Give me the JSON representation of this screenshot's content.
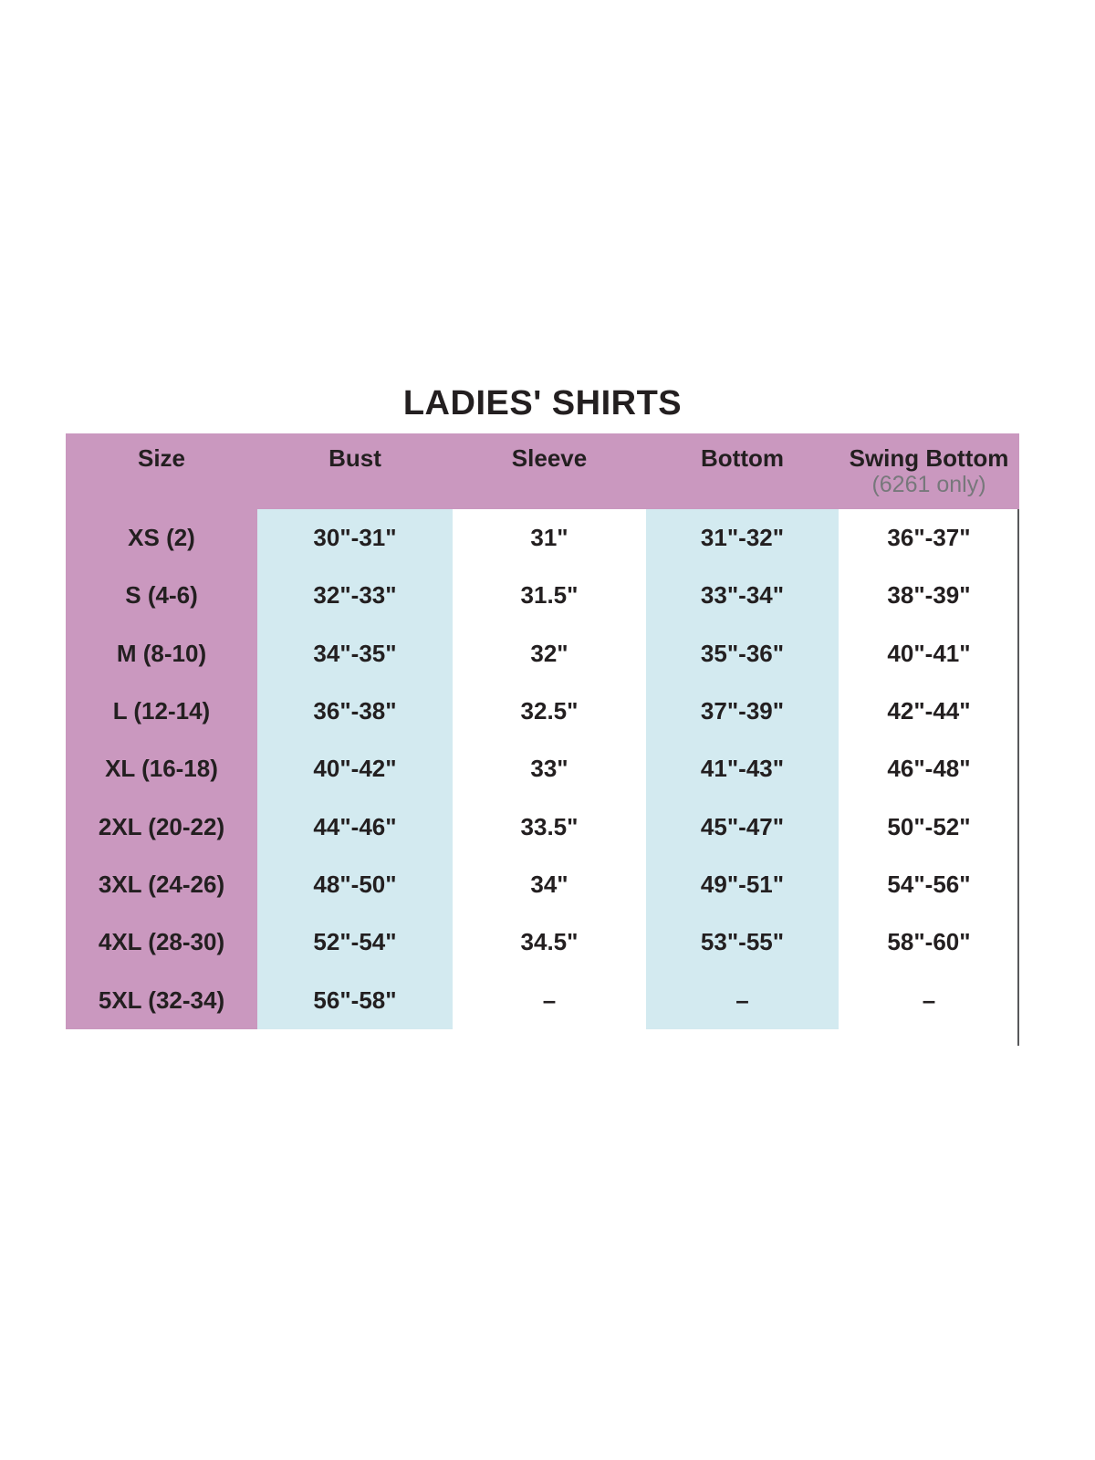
{
  "page": {
    "title": "LADIES' SHIRTS"
  },
  "table": {
    "headers": [
      {
        "label": "Size",
        "sub": ""
      },
      {
        "label": "Bust",
        "sub": ""
      },
      {
        "label": "Sleeve",
        "sub": ""
      },
      {
        "label": "Bottom",
        "sub": ""
      },
      {
        "label": "Swing Bottom",
        "sub": "(6261 only)"
      }
    ],
    "rows": [
      {
        "size": "XS (2)",
        "bust": "30\"-31\"",
        "sleeve": "31\"",
        "bottom": "31\"-32\"",
        "swing_bottom": "36\"-37\""
      },
      {
        "size": "S (4-6)",
        "bust": "32\"-33\"",
        "sleeve": "31.5\"",
        "bottom": "33\"-34\"",
        "swing_bottom": "38\"-39\""
      },
      {
        "size": "M (8-10)",
        "bust": "34\"-35\"",
        "sleeve": "32\"",
        "bottom": "35\"-36\"",
        "swing_bottom": "40\"-41\""
      },
      {
        "size": "L (12-14)",
        "bust": "36\"-38\"",
        "sleeve": "32.5\"",
        "bottom": "37\"-39\"",
        "swing_bottom": "42\"-44\""
      },
      {
        "size": "XL (16-18)",
        "bust": "40\"-42\"",
        "sleeve": "33\"",
        "bottom": "41\"-43\"",
        "swing_bottom": "46\"-48\""
      },
      {
        "size": "2XL (20-22)",
        "bust": "44\"-46\"",
        "sleeve": "33.5\"",
        "bottom": "45\"-47\"",
        "swing_bottom": "50\"-52\""
      },
      {
        "size": "3XL (24-26)",
        "bust": "48\"-50\"",
        "sleeve": "34\"",
        "bottom": "49\"-51\"",
        "swing_bottom": "54\"-56\""
      },
      {
        "size": "4XL (28-30)",
        "bust": "52\"-54\"",
        "sleeve": "34.5\"",
        "bottom": "53\"-55\"",
        "swing_bottom": "58\"-60\""
      },
      {
        "size": "5XL (32-34)",
        "bust": "56\"-58\"",
        "sleeve": "–",
        "bottom": "–",
        "swing_bottom": "–"
      }
    ]
  },
  "colors": {
    "purple": "#ca98bf",
    "blue": "#d3eaf0",
    "text": "#231f20",
    "subtext": "#77787b",
    "rule": "#58595b"
  },
  "chart_data": {
    "type": "table",
    "title": "LADIES' SHIRTS",
    "columns": [
      "Size",
      "Bust",
      "Sleeve",
      "Bottom",
      "Swing Bottom (6261 only)"
    ],
    "rows": [
      [
        "XS (2)",
        "30\"-31\"",
        "31\"",
        "31\"-32\"",
        "36\"-37\""
      ],
      [
        "S (4-6)",
        "32\"-33\"",
        "31.5\"",
        "33\"-34\"",
        "38\"-39\""
      ],
      [
        "M (8-10)",
        "34\"-35\"",
        "32\"",
        "35\"-36\"",
        "40\"-41\""
      ],
      [
        "L (12-14)",
        "36\"-38\"",
        "32.5\"",
        "37\"-39\"",
        "42\"-44\""
      ],
      [
        "XL (16-18)",
        "40\"-42\"",
        "33\"",
        "41\"-43\"",
        "46\"-48\""
      ],
      [
        "2XL (20-22)",
        "44\"-46\"",
        "33.5\"",
        "45\"-47\"",
        "50\"-52\""
      ],
      [
        "3XL (24-26)",
        "48\"-50\"",
        "34\"",
        "49\"-51\"",
        "54\"-56\""
      ],
      [
        "4XL (28-30)",
        "52\"-54\"",
        "34.5\"",
        "53\"-55\"",
        "58\"-60\""
      ],
      [
        "5XL (32-34)",
        "56\"-58\"",
        "–",
        "–",
        "–"
      ]
    ],
    "layout": {
      "column_band_colors": [
        "#ca98bf",
        "#d3eaf0",
        "#ffffff",
        "#d3eaf0",
        "#ffffff"
      ],
      "header_background": "#ca98bf",
      "right_edge_rule": true
    }
  }
}
